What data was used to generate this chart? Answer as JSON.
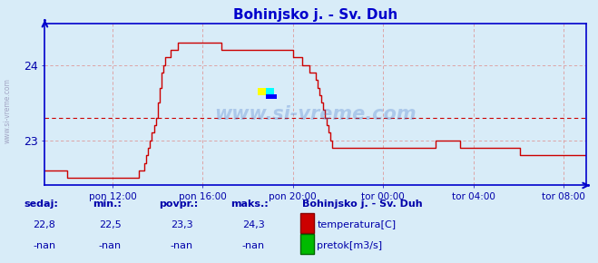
{
  "title": "Bohinjsko j. - Sv. Duh",
  "bg_color": "#d8ecf8",
  "plot_bg_color": "#d8ecf8",
  "line_color": "#cc0000",
  "axis_color": "#0000cc",
  "grid_color": "#dd9999",
  "avg_line_color": "#cc0000",
  "avg_value": 23.3,
  "ylim": [
    22.4,
    24.55
  ],
  "yticks": [
    23,
    24
  ],
  "xtick_labels": [
    "pon 12:00",
    "pon 16:00",
    "pon 20:00",
    "tor 00:00",
    "tor 04:00",
    "tor 08:00"
  ],
  "sedaj": "22,8",
  "min_val": "22,5",
  "povpr": "23,3",
  "maks": "24,3",
  "station": "Bohinjsko j. - Sv. Duh",
  "legend1": "temperatura[C]",
  "legend2": "pretok[m3/s]",
  "text_color": "#0000aa",
  "watermark": "www.si-vreme.com",
  "temperature_data": [
    22.6,
    22.6,
    22.6,
    22.6,
    22.6,
    22.6,
    22.6,
    22.6,
    22.6,
    22.6,
    22.6,
    22.6,
    22.5,
    22.5,
    22.5,
    22.5,
    22.5,
    22.5,
    22.5,
    22.5,
    22.5,
    22.5,
    22.5,
    22.5,
    22.5,
    22.5,
    22.5,
    22.5,
    22.5,
    22.5,
    22.5,
    22.5,
    22.5,
    22.5,
    22.5,
    22.5,
    22.5,
    22.5,
    22.5,
    22.5,
    22.5,
    22.5,
    22.5,
    22.5,
    22.5,
    22.5,
    22.5,
    22.5,
    22.5,
    22.5,
    22.6,
    22.6,
    22.6,
    22.7,
    22.8,
    22.9,
    23.0,
    23.1,
    23.2,
    23.3,
    23.5,
    23.7,
    23.9,
    24.0,
    24.1,
    24.1,
    24.1,
    24.2,
    24.2,
    24.2,
    24.2,
    24.3,
    24.3,
    24.3,
    24.3,
    24.3,
    24.3,
    24.3,
    24.3,
    24.3,
    24.3,
    24.3,
    24.3,
    24.3,
    24.3,
    24.3,
    24.3,
    24.3,
    24.3,
    24.3,
    24.3,
    24.3,
    24.3,
    24.3,
    24.2,
    24.2,
    24.2,
    24.2,
    24.2,
    24.2,
    24.2,
    24.2,
    24.2,
    24.2,
    24.2,
    24.2,
    24.2,
    24.2,
    24.2,
    24.2,
    24.2,
    24.2,
    24.2,
    24.2,
    24.2,
    24.2,
    24.2,
    24.2,
    24.2,
    24.2,
    24.2,
    24.2,
    24.2,
    24.2,
    24.2,
    24.2,
    24.2,
    24.2,
    24.2,
    24.2,
    24.2,
    24.2,
    24.1,
    24.1,
    24.1,
    24.1,
    24.1,
    24.0,
    24.0,
    24.0,
    24.0,
    23.9,
    23.9,
    23.9,
    23.8,
    23.7,
    23.6,
    23.5,
    23.4,
    23.3,
    23.2,
    23.1,
    23.0,
    22.9,
    22.9,
    22.9,
    22.9,
    22.9,
    22.9,
    22.9,
    22.9,
    22.9,
    22.9,
    22.9,
    22.9,
    22.9,
    22.9,
    22.9,
    22.9,
    22.9,
    22.9,
    22.9,
    22.9,
    22.9,
    22.9,
    22.9,
    22.9,
    22.9,
    22.9,
    22.9,
    22.9,
    22.9,
    22.9,
    22.9,
    22.9,
    22.9,
    22.9,
    22.9,
    22.9,
    22.9,
    22.9,
    22.9,
    22.9,
    22.9,
    22.9,
    22.9,
    22.9,
    22.9,
    22.9,
    22.9,
    22.9,
    22.9,
    22.9,
    22.9,
    22.9,
    22.9,
    22.9,
    22.9,
    23.0,
    23.0,
    23.0,
    23.0,
    23.0,
    23.0,
    23.0,
    23.0,
    23.0,
    23.0,
    23.0,
    23.0,
    23.0,
    22.9,
    22.9,
    22.9,
    22.9,
    22.9,
    22.9,
    22.9,
    22.9,
    22.9,
    22.9,
    22.9,
    22.9,
    22.9,
    22.9,
    22.9,
    22.9,
    22.9,
    22.9,
    22.9,
    22.9,
    22.9,
    22.9,
    22.9,
    22.9,
    22.9,
    22.9,
    22.9,
    22.9,
    22.9,
    22.9,
    22.9,
    22.9,
    22.8,
    22.8,
    22.8,
    22.8,
    22.8,
    22.8,
    22.8,
    22.8,
    22.8,
    22.8,
    22.8,
    22.8,
    22.8,
    22.8,
    22.8,
    22.8,
    22.8,
    22.8,
    22.8,
    22.8,
    22.8,
    22.8,
    22.8,
    22.8,
    22.8,
    22.8,
    22.8,
    22.8,
    22.8,
    22.8,
    22.8,
    22.8,
    22.8,
    22.8,
    22.8,
    22.8
  ]
}
